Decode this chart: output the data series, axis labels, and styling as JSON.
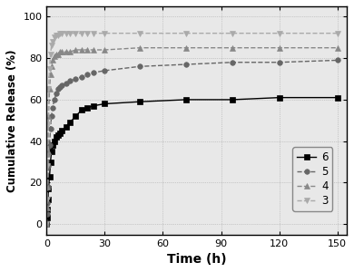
{
  "title": "",
  "xlabel": "Time (h)",
  "ylabel": "Cumulative Release (%)",
  "xlim": [
    0,
    155
  ],
  "ylim": [
    -5,
    105
  ],
  "xticks": [
    0,
    30,
    60,
    90,
    120,
    150
  ],
  "yticks": [
    0,
    20,
    40,
    60,
    80,
    100
  ],
  "background_color": "#ffffff",
  "plot_bg_color": "#e8e8e8",
  "series": [
    {
      "label": "6",
      "color": "#000000",
      "marker": "s",
      "markersize": 4,
      "linestyle": "-",
      "linewidth": 1.0,
      "x": [
        0,
        0.25,
        0.5,
        0.75,
        1,
        1.5,
        2,
        2.5,
        3,
        4,
        5,
        6,
        7,
        8,
        10,
        12,
        15,
        18,
        21,
        24,
        30,
        48,
        72,
        96,
        120,
        150
      ],
      "y": [
        0,
        3,
        7,
        12,
        17,
        23,
        30,
        35,
        38,
        40,
        42,
        43,
        44,
        45,
        47,
        49,
        52,
        55,
        56,
        57,
        58,
        59,
        60,
        60,
        61,
        61
      ]
    },
    {
      "label": "5",
      "color": "#666666",
      "marker": "o",
      "markersize": 4,
      "linestyle": "--",
      "linewidth": 1.0,
      "x": [
        0,
        0.25,
        0.5,
        0.75,
        1,
        1.5,
        2,
        2.5,
        3,
        4,
        5,
        6,
        7,
        8,
        10,
        12,
        15,
        18,
        21,
        24,
        30,
        48,
        72,
        96,
        120,
        150
      ],
      "y": [
        0,
        5,
        10,
        18,
        28,
        38,
        46,
        52,
        56,
        60,
        63,
        65,
        66,
        67,
        68,
        69,
        70,
        71,
        72,
        73,
        74,
        76,
        77,
        78,
        78,
        79
      ]
    },
    {
      "label": "4",
      "color": "#888888",
      "marker": "^",
      "markersize": 5,
      "linestyle": "--",
      "linewidth": 1.0,
      "x": [
        0,
        0.25,
        0.5,
        0.75,
        1,
        1.5,
        2,
        2.5,
        3,
        4,
        5,
        6,
        7,
        8,
        10,
        12,
        15,
        18,
        21,
        24,
        30,
        48,
        72,
        96,
        120,
        150
      ],
      "y": [
        0,
        8,
        18,
        35,
        52,
        65,
        72,
        76,
        79,
        81,
        82,
        82,
        83,
        83,
        83,
        83,
        84,
        84,
        84,
        84,
        84,
        85,
        85,
        85,
        85,
        85
      ]
    },
    {
      "label": "3",
      "color": "#aaaaaa",
      "marker": "v",
      "markersize": 5,
      "linestyle": "--",
      "linewidth": 1.0,
      "x": [
        0,
        0.25,
        0.5,
        0.75,
        1,
        1.5,
        2,
        2.5,
        3,
        4,
        5,
        6,
        7,
        8,
        10,
        12,
        15,
        18,
        21,
        24,
        30,
        48,
        72,
        96,
        120,
        150
      ],
      "y": [
        0,
        12,
        28,
        48,
        65,
        75,
        82,
        86,
        88,
        90,
        91,
        91,
        92,
        92,
        92,
        92,
        92,
        92,
        92,
        92,
        92,
        92,
        92,
        92,
        92,
        92
      ]
    }
  ]
}
